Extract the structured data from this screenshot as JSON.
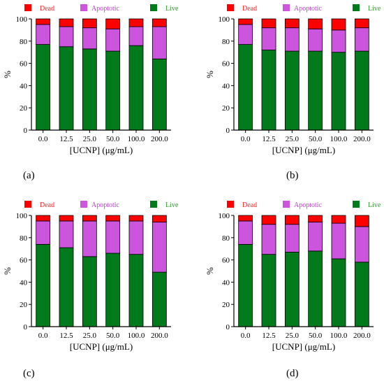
{
  "colors": {
    "dead": "#ff0000",
    "apoptotic": "#cc55dd",
    "live": "#007a1a",
    "legend_dead_text": "#ff2222",
    "legend_apoptotic_text": "#bb44cc",
    "legend_live_text": "#339933"
  },
  "chart_data": [
    {
      "type": "bar",
      "stacked": true,
      "panel_label": "(a)",
      "categories": [
        "0.0",
        "12.5",
        "25.0",
        "50.0",
        "100.0",
        "200.0"
      ],
      "series": [
        {
          "name": "Live",
          "values": [
            77,
            75,
            73,
            71,
            76,
            64
          ]
        },
        {
          "name": "Apoptotic",
          "values": [
            18,
            18,
            19,
            20,
            17,
            29
          ]
        },
        {
          "name": "Dead",
          "values": [
            5,
            7,
            8,
            9,
            7,
            7
          ]
        }
      ],
      "legend": [
        "Dead",
        "Apoptotic",
        "Live"
      ],
      "xlabel": "[UCNP] (μg/mL)",
      "ylabel": "%",
      "ylim": [
        0,
        100
      ],
      "yticks": [
        "0",
        "20",
        "40",
        "60",
        "80",
        "100"
      ],
      "grid": false,
      "legend_position": "top"
    },
    {
      "type": "bar",
      "stacked": true,
      "panel_label": "(b)",
      "categories": [
        "0.0",
        "12.5",
        "25.0",
        "50.0",
        "100.0",
        "200.0"
      ],
      "series": [
        {
          "name": "Live",
          "values": [
            77,
            72,
            71,
            71,
            70,
            71
          ]
        },
        {
          "name": "Apoptotic",
          "values": [
            18,
            20,
            21,
            20,
            20,
            21
          ]
        },
        {
          "name": "Dead",
          "values": [
            5,
            8,
            8,
            9,
            10,
            8
          ]
        }
      ],
      "legend": [
        "Dead",
        "Apoptotic",
        "Live"
      ],
      "xlabel": "[UCNP] (μg/mL)",
      "ylabel": "%",
      "ylim": [
        0,
        100
      ],
      "yticks": [
        "0",
        "20",
        "40",
        "60",
        "80",
        "100"
      ],
      "grid": false,
      "legend_position": "top"
    },
    {
      "type": "bar",
      "stacked": true,
      "panel_label": "(c)",
      "categories": [
        "0.0",
        "12.5",
        "25.0",
        "50.0",
        "100.0",
        "200.0"
      ],
      "series": [
        {
          "name": "Live",
          "values": [
            74,
            71,
            63,
            66,
            65,
            49
          ]
        },
        {
          "name": "Apoptotic",
          "values": [
            21,
            24,
            32,
            29,
            30,
            45
          ]
        },
        {
          "name": "Dead",
          "values": [
            5,
            5,
            5,
            5,
            5,
            6
          ]
        }
      ],
      "legend": [
        "Dead",
        "Apoptotic",
        "Live"
      ],
      "xlabel": "[UCNP] (μg/mL)",
      "ylabel": "%",
      "ylim": [
        0,
        100
      ],
      "yticks": [
        "0",
        "20",
        "40",
        "60",
        "80",
        "100"
      ],
      "grid": false,
      "legend_position": "top"
    },
    {
      "type": "bar",
      "stacked": true,
      "panel_label": "(d)",
      "categories": [
        "0.0",
        "12.5",
        "25.0",
        "50.0",
        "100.0",
        "200.0"
      ],
      "series": [
        {
          "name": "Live",
          "values": [
            74,
            65,
            67,
            68,
            61,
            58
          ]
        },
        {
          "name": "Apoptotic",
          "values": [
            21,
            27,
            25,
            26,
            32,
            32
          ]
        },
        {
          "name": "Dead",
          "values": [
            5,
            8,
            8,
            6,
            7,
            10
          ]
        }
      ],
      "legend": [
        "Dead",
        "Apoptotic",
        "Live"
      ],
      "xlabel": "[UCNP] (μg/mL)",
      "ylabel": "%",
      "ylim": [
        0,
        100
      ],
      "yticks": [
        "0",
        "20",
        "40",
        "60",
        "80",
        "100"
      ],
      "grid": false,
      "legend_position": "top"
    }
  ]
}
